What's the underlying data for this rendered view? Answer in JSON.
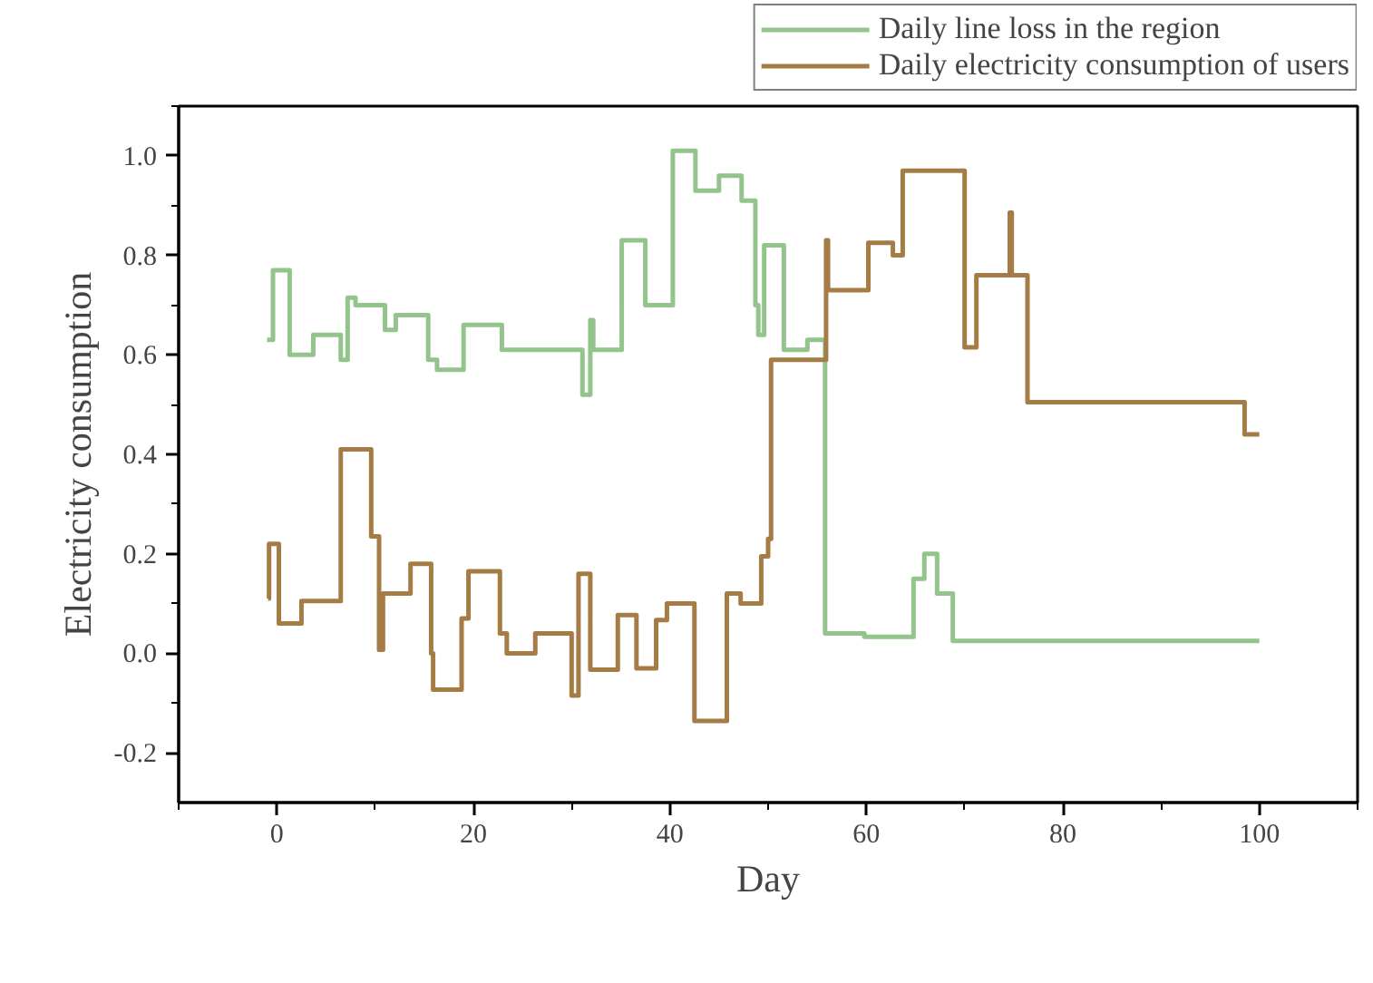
{
  "chart_data": {
    "type": "step",
    "xlabel": "Day",
    "ylabel": "Electricity consumption",
    "xlim": [
      -10,
      110
    ],
    "ylim": [
      -0.3,
      1.1
    ],
    "xticks": [
      0,
      20,
      40,
      60,
      80,
      100
    ],
    "yticks": [
      {
        "value": -0.2,
        "label": "-0.2"
      },
      {
        "value": 0,
        "label": "0.0"
      },
      {
        "value": 0.2,
        "label": "0.2"
      },
      {
        "value": 0.4,
        "label": "0.4"
      },
      {
        "value": 0.6,
        "label": "0.6"
      },
      {
        "value": 0.8,
        "label": "0.8"
      },
      {
        "value": 1,
        "label": "1.0"
      }
    ],
    "grid": false,
    "legend": "top right",
    "marker": "none",
    "line_style": "solid",
    "series": [
      {
        "name": "Daily line loss in the region",
        "color": "#93c48c",
        "x": [
          -1,
          -0.4,
          1.3,
          3.7,
          6.5,
          7.2,
          8.0,
          11.0,
          12.1,
          15.4,
          16.3,
          19.0,
          22.9,
          31.1,
          31.9,
          32.2,
          35.1,
          37.5,
          40.3,
          42.6,
          45.0,
          47.3,
          48.7,
          49.0,
          49.6,
          51.6,
          54.0,
          55.8,
          59.8,
          64.8,
          65.9,
          67.2,
          68.8,
          100
        ],
        "values": [
          0.63,
          0.77,
          0.6,
          0.64,
          0.59,
          0.715,
          0.7,
          0.65,
          0.68,
          0.59,
          0.57,
          0.66,
          0.61,
          0.52,
          0.67,
          0.61,
          0.83,
          0.7,
          1.01,
          0.93,
          0.96,
          0.91,
          0.7,
          0.64,
          0.82,
          0.61,
          0.63,
          0.04,
          0.033,
          0.15,
          0.2,
          0.12,
          0.025,
          0.025
        ]
      },
      {
        "name": "Daily electricity consumption of users",
        "color": "#a57c45",
        "x": [
          -0.9,
          -0.8,
          0.2,
          2.5,
          6.5,
          9.6,
          10.4,
          10.8,
          13.6,
          15.7,
          15.9,
          18.8,
          19.5,
          22.7,
          23.4,
          26.3,
          30.0,
          30.7,
          31.9,
          34.7,
          36.6,
          38.6,
          39.7,
          42.5,
          45.8,
          47.2,
          49.3,
          50.0,
          50.3,
          55.9,
          56.1,
          60.2,
          62.7,
          63.7,
          70.0,
          71.2,
          74.6,
          74.8,
          76.4,
          98.5,
          100
        ],
        "values": [
          0.11,
          0.22,
          0.06,
          0.105,
          0.41,
          0.235,
          0.007,
          0.12,
          0.18,
          0.0,
          -0.073,
          0.07,
          0.165,
          0.04,
          0.0,
          0.04,
          -0.085,
          0.16,
          -0.033,
          0.077,
          -0.03,
          0.067,
          0.1,
          -0.136,
          0.12,
          0.1,
          0.195,
          0.23,
          0.59,
          0.83,
          0.73,
          0.825,
          0.8,
          0.97,
          0.615,
          0.76,
          0.886,
          0.76,
          0.505,
          0.44,
          0.44
        ]
      }
    ]
  }
}
